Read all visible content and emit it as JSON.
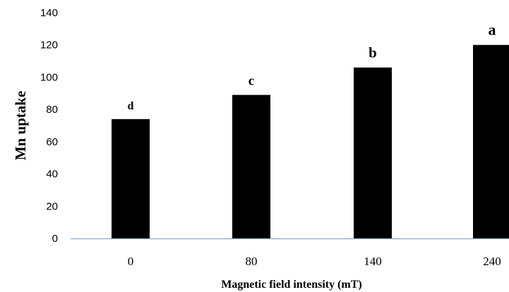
{
  "chart_data": {
    "type": "bar",
    "title": "",
    "xlabel": "Magnetic field intensity (mT)",
    "ylabel": "Mn uptake",
    "categories": [
      "0",
      "80",
      "140",
      "240"
    ],
    "values": [
      74,
      89,
      106,
      120
    ],
    "bar_labels": [
      "d",
      "c",
      "b",
      "a"
    ],
    "ylim": [
      0,
      140
    ],
    "yticks": [
      0,
      20,
      40,
      60,
      80,
      100,
      120,
      140
    ],
    "grid": false,
    "legend": "none",
    "colors": {
      "bar": "#000000",
      "axis": "#8aa9cc"
    }
  }
}
